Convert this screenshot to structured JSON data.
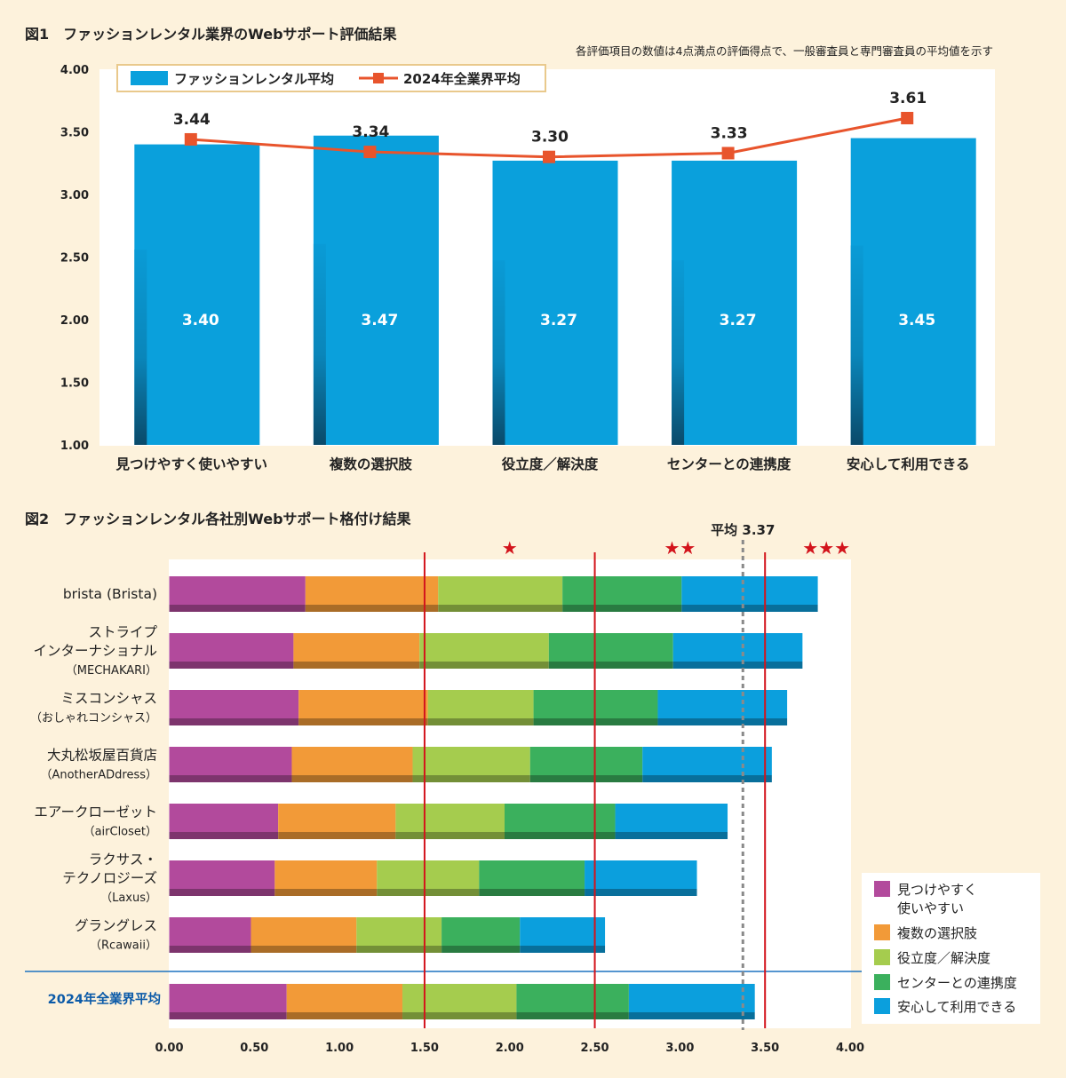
{
  "chart_data": [
    {
      "type": "bar",
      "title": "図1　ファッションレンタル業界のWebサポート評価結果",
      "subtitle": "各評価項目の数値は4点満点の評価得点で、一般審査員と専門審査員の平均値を示す",
      "categories": [
        "見つけやすく使いやすい",
        "複数の選択肢",
        "役立度／解決度",
        "センターとの連携度",
        "安心して利用できる"
      ],
      "series": [
        {
          "name": "ファッションレンタル平均",
          "kind": "bar",
          "color": "#0aa0dc",
          "values": [
            3.4,
            3.47,
            3.27,
            3.27,
            3.45
          ],
          "labels": [
            "3.40",
            "3.47",
            "3.27",
            "3.27",
            "3.45"
          ]
        },
        {
          "name": "2024年全業界平均",
          "kind": "line",
          "color": "#e8542c",
          "values": [
            3.44,
            3.34,
            3.3,
            3.33,
            3.61
          ],
          "labels": [
            "3.44",
            "3.34",
            "3.30",
            "3.33",
            "3.61"
          ]
        }
      ],
      "ylim": [
        1.0,
        4.0
      ],
      "yticks": [
        "1.00",
        "1.50",
        "2.00",
        "2.50",
        "3.00",
        "3.50",
        "4.00"
      ],
      "legend": "top-left",
      "grid": false
    },
    {
      "type": "bar",
      "orientation": "horizontal",
      "stacked": true,
      "title": "図2　ファッションレンタル各社別Webサポート格付け結果",
      "companies": [
        {
          "name_lines": [
            "brista (Brista)"
          ],
          "segments": [
            0.8,
            0.78,
            0.73,
            0.7,
            0.8
          ]
        },
        {
          "name_lines": [
            "ストライプ",
            "インターナショナル",
            "（MECHAKARI）"
          ],
          "segments": [
            0.73,
            0.74,
            0.76,
            0.73,
            0.76
          ]
        },
        {
          "name_lines": [
            "ミスコンシャス",
            "（おしゃれコンシャス）"
          ],
          "segments": [
            0.76,
            0.76,
            0.62,
            0.73,
            0.76
          ]
        },
        {
          "name_lines": [
            "大丸松坂屋百貨店",
            "（AnotherADdress）"
          ],
          "segments": [
            0.72,
            0.71,
            0.69,
            0.66,
            0.76
          ]
        },
        {
          "name_lines": [
            "エアークローゼット",
            "（airCloset）"
          ],
          "segments": [
            0.64,
            0.69,
            0.64,
            0.65,
            0.66
          ]
        },
        {
          "name_lines": [
            "ラクサス・",
            "テクノロジーズ",
            "（Laxus）"
          ],
          "segments": [
            0.62,
            0.6,
            0.6,
            0.62,
            0.66
          ]
        },
        {
          "name_lines": [
            "グラングレス",
            "（Rcawaii）"
          ],
          "segments": [
            0.48,
            0.62,
            0.5,
            0.46,
            0.5
          ]
        }
      ],
      "industry_average": {
        "name": "2024年全業界平均",
        "segments": [
          0.69,
          0.68,
          0.67,
          0.66,
          0.74
        ]
      },
      "series_names": [
        "見つけやすく\n使いやすい",
        "複数の選択肢",
        "役立度／解決度",
        "センターとの連携度",
        "安心して利用できる"
      ],
      "series_colors": [
        "#b24a9c",
        "#f29a38",
        "#a5cc4e",
        "#3bb05d",
        "#0b9fdd"
      ],
      "xlim": [
        0.0,
        4.0
      ],
      "xticks": [
        "0.00",
        "0.50",
        "1.00",
        "1.50",
        "2.00",
        "2.50",
        "3.00",
        "3.50",
        "4.00"
      ],
      "thresholds": [
        1.5,
        2.5,
        3.5
      ],
      "stars": [
        "★",
        "★★",
        "★★★"
      ],
      "average_line": {
        "label": "平均 3.37",
        "value": 3.37
      },
      "legend": "bottom-right"
    }
  ]
}
